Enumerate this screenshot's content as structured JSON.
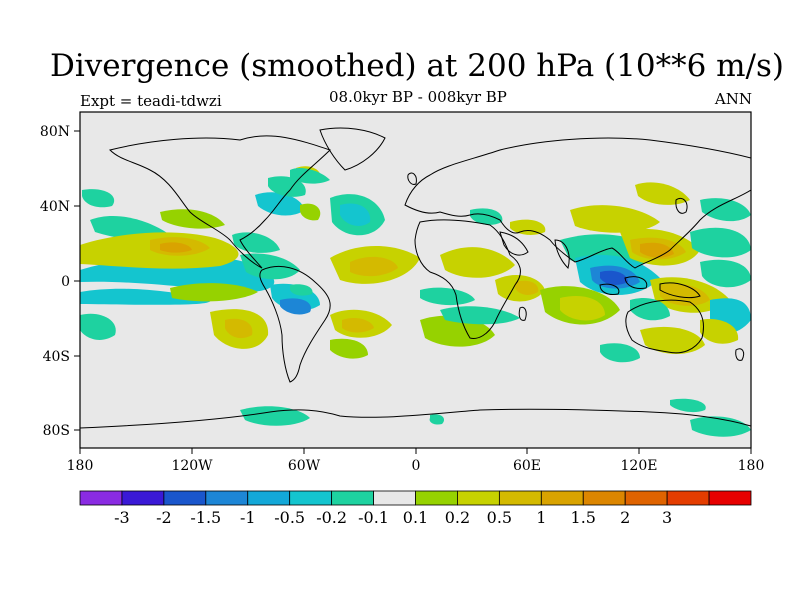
{
  "title": "Divergence (smoothed) at 200 hPa (10**6 m/s)",
  "experiment": "Expt = teadi-tdwzi",
  "period": "08.0kyr BP - 008kyr BP",
  "season": "ANN",
  "map": {
    "background_color": "#e8e8e8",
    "lon_ticks": [
      "180",
      "120W",
      "60W",
      "0",
      "60E",
      "120E",
      "180"
    ],
    "lat_ticks": [
      "80N",
      "40N",
      "0",
      "40S",
      "80S"
    ]
  },
  "colorbar": {
    "colors": [
      "#8a2be2",
      "#3a19d6",
      "#1a56cc",
      "#1d86d6",
      "#13a8d8",
      "#14c5cf",
      "#1ed2a0",
      "#e8e8e8",
      "#96d200",
      "#c7d200",
      "#d4ba00",
      "#d9a300",
      "#dc8600",
      "#df6300",
      "#e43d00",
      "#e60000"
    ],
    "labels": [
      "-3",
      "-2",
      "-1.5",
      "-1",
      "-0.5",
      "-0.2",
      "-0.1",
      "0.1",
      "0.2",
      "0.5",
      "1",
      "1.5",
      "2",
      "3"
    ]
  }
}
